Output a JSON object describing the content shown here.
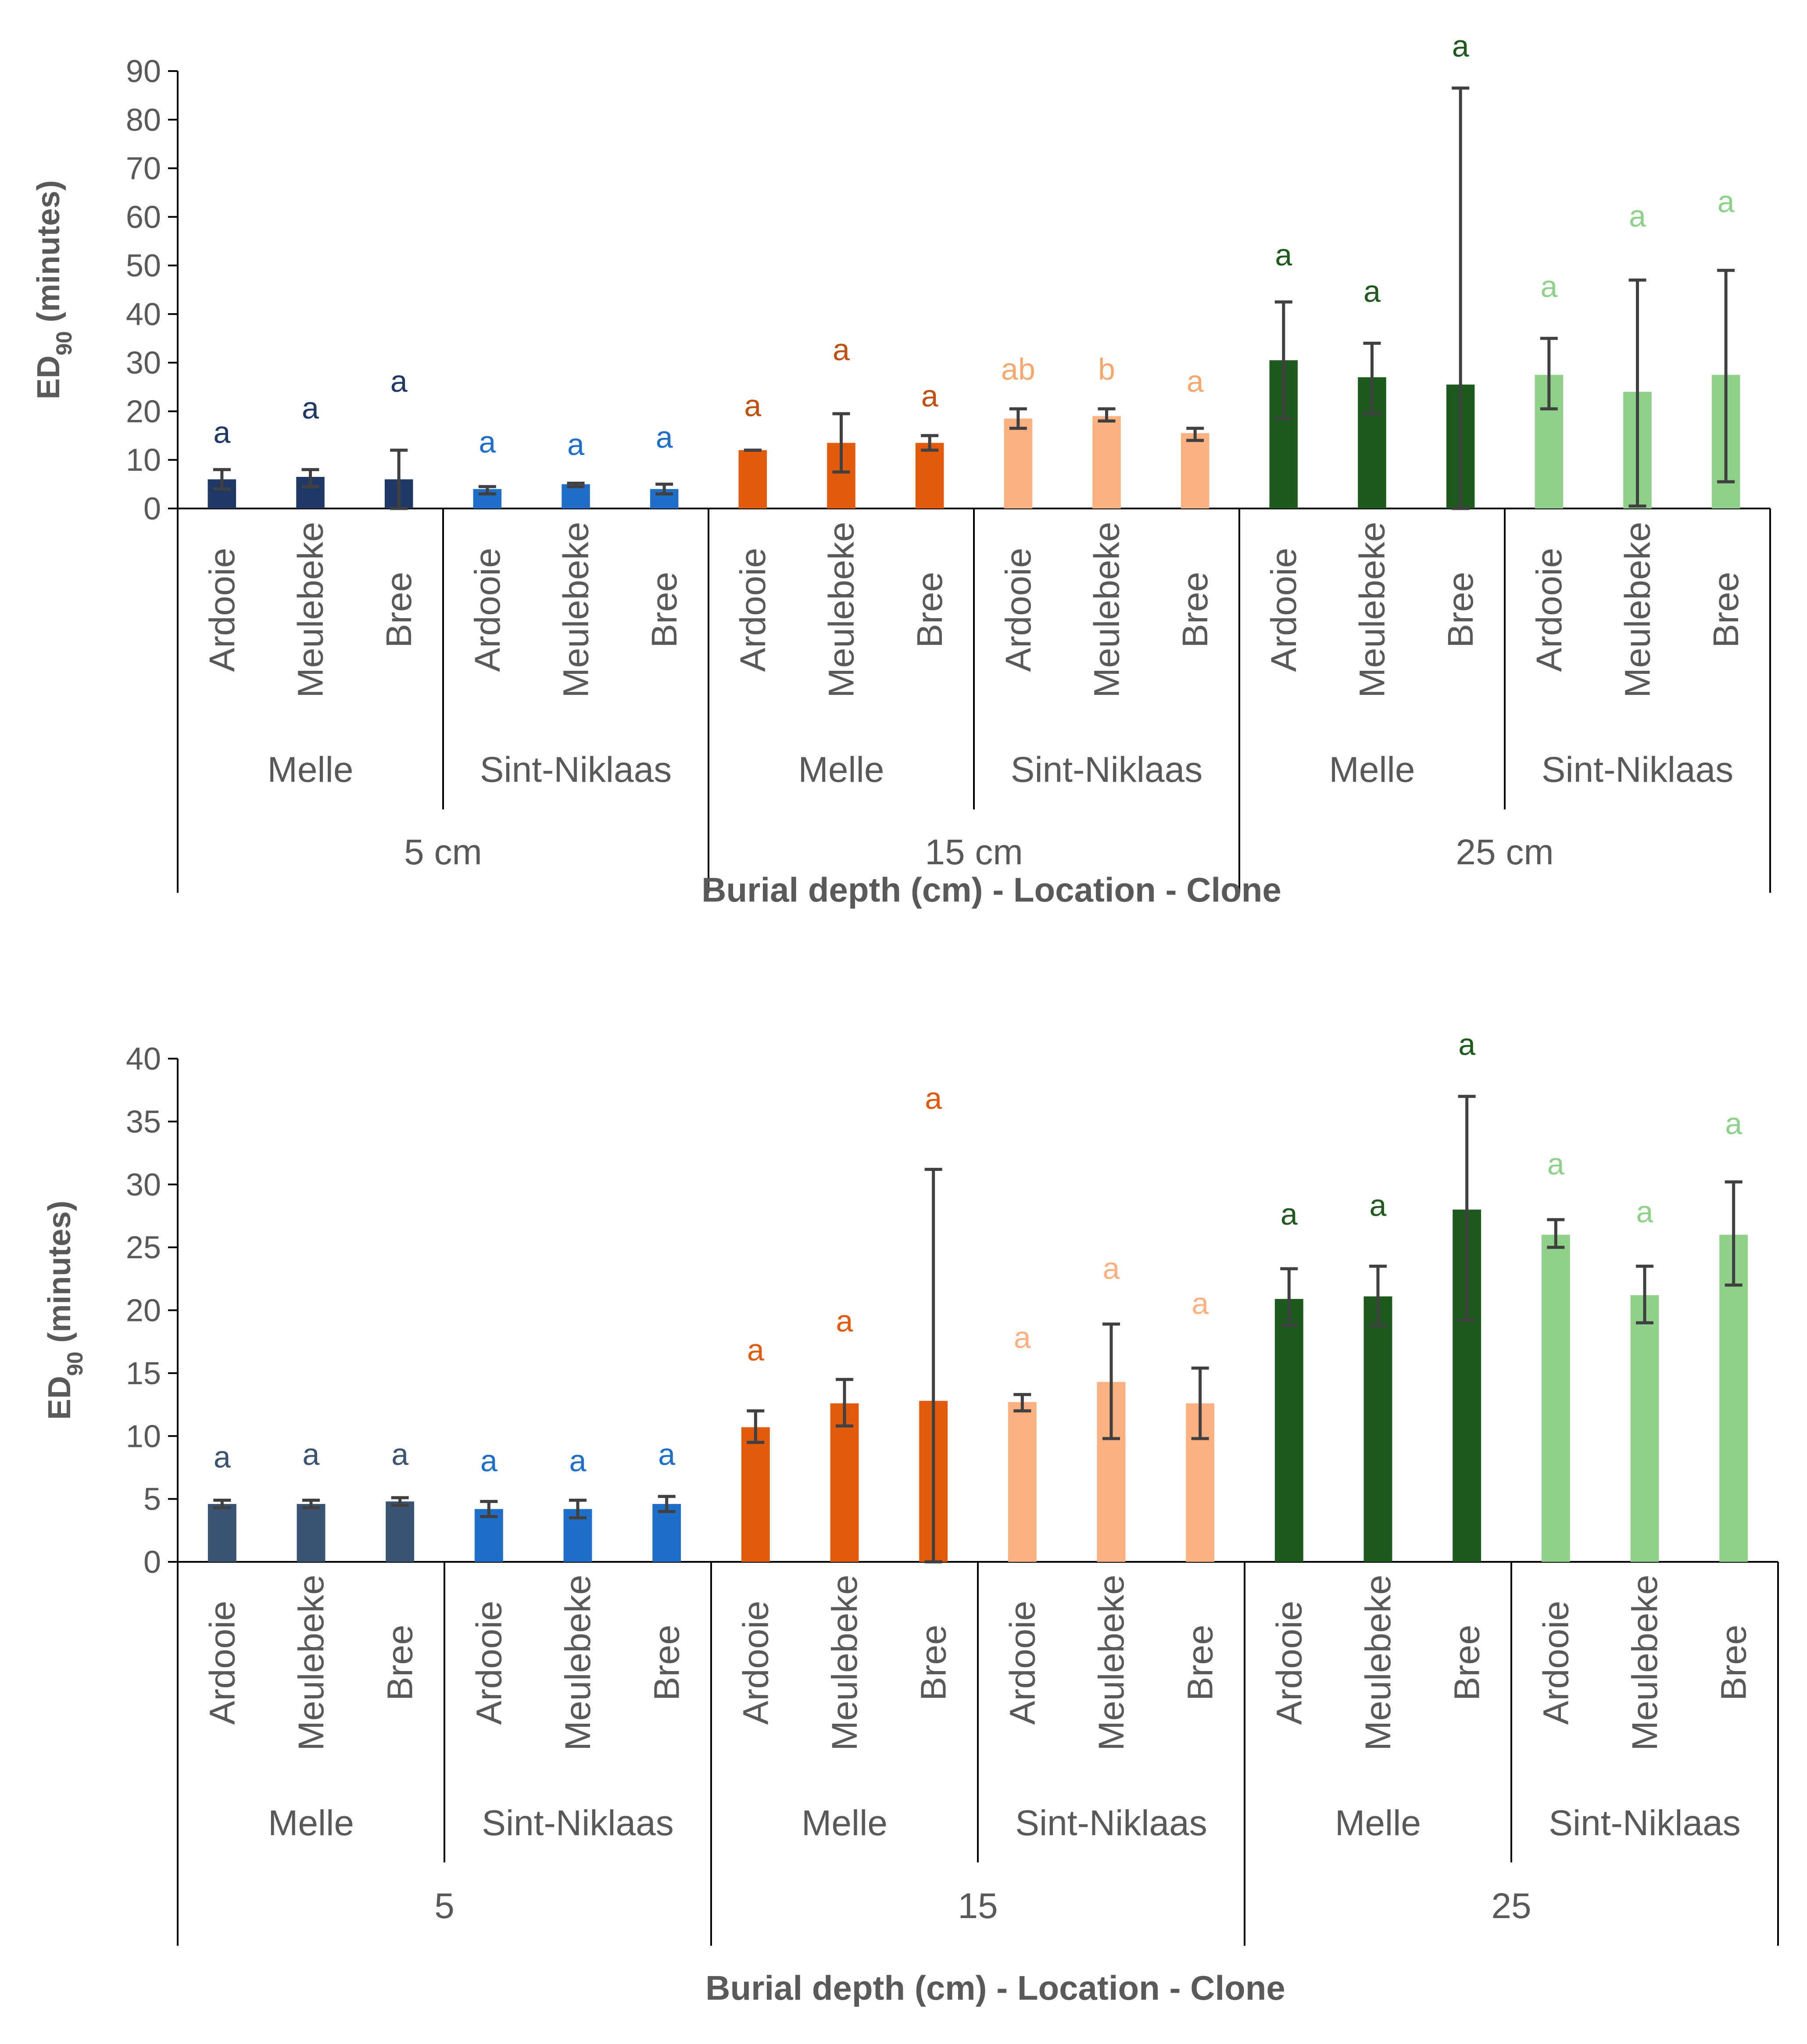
{
  "chart_data": [
    {
      "type": "bar",
      "xlabel": "Burial depth (cm) - Location - Clone",
      "ylabel": "ED90 (minutes)",
      "ylim": [
        0,
        90
      ],
      "yticks": [
        0,
        10,
        20,
        30,
        40,
        50,
        60,
        70,
        80,
        90
      ],
      "depth_labels": [
        "5 cm",
        "15 cm",
        "25 cm"
      ],
      "location_labels": [
        "Melle",
        "Sint-Niklaas",
        "Melle",
        "Sint-Niklaas",
        "Melle",
        "Sint-Niklaas"
      ],
      "categories": [
        "Ardooie",
        "Meulebeke",
        "Bree",
        "Ardooie",
        "Meulebeke",
        "Bree",
        "Ardooie",
        "Meulebeke",
        "Bree",
        "Ardooie",
        "Meulebeke",
        "Bree",
        "Ardooie",
        "Meulebeke",
        "Bree",
        "Ardooie",
        "Meulebeke",
        "Bree"
      ],
      "values": [
        6,
        6.5,
        6,
        4,
        5,
        4,
        12,
        13.5,
        13.5,
        18.5,
        19,
        15.5,
        30.5,
        27,
        25.5,
        27.5,
        24,
        27.5
      ],
      "err_low": [
        4,
        4.5,
        0,
        3,
        4.5,
        3,
        12,
        7.5,
        12,
        16.5,
        18,
        14,
        18.5,
        19.5,
        0,
        20.5,
        0.5,
        5.5
      ],
      "err_high": [
        8,
        8,
        12,
        4.5,
        5.2,
        5,
        12,
        19.5,
        15,
        20.5,
        20.5,
        16.5,
        42.5,
        34,
        86.5,
        35,
        47,
        49
      ],
      "letters": [
        "a",
        "a",
        "a",
        "a",
        "a",
        "a",
        "a",
        "a",
        "a",
        "ab",
        "b",
        "a",
        "a",
        "a",
        "a",
        "a",
        "a",
        "a"
      ],
      "colors": [
        "#1f3864",
        "#1f3864",
        "#1f3864",
        "#1f6fc8",
        "#1f6fc8",
        "#1f6fc8",
        "#e35a0d",
        "#e35a0d",
        "#e35a0d",
        "#fbb182",
        "#fbb182",
        "#fbb182",
        "#1e5a1e",
        "#1e5a1e",
        "#1e5a1e",
        "#8fd08a",
        "#8fd08a",
        "#8fd08a"
      ],
      "letter_colors": [
        "#1f3864",
        "#1f3864",
        "#1f3864",
        "#1f6fc8",
        "#1f6fc8",
        "#1f6fc8",
        "#c0500f",
        "#c0500f",
        "#c0500f",
        "#f5a870",
        "#f5a870",
        "#f5a870",
        "#1e5a1e",
        "#1e5a1e",
        "#1e5a1e",
        "#8fd08a",
        "#8fd08a",
        "#8fd08a"
      ],
      "letter_values": [
        13.5,
        18.5,
        24,
        11.5,
        11,
        12.5,
        19,
        30.5,
        21,
        26.5,
        26.5,
        24,
        50,
        42.5,
        93,
        43.5,
        58,
        61
      ]
    },
    {
      "type": "bar",
      "xlabel": "Burial depth (cm) - Location - Clone",
      "ylabel": "ED90 (minutes)",
      "ylim": [
        0,
        40
      ],
      "yticks": [
        0,
        5,
        10,
        15,
        20,
        25,
        30,
        35,
        40
      ],
      "depth_labels": [
        "5",
        "15",
        "25"
      ],
      "location_labels": [
        "Melle",
        "Sint-Niklaas",
        "Melle",
        "Sint-Niklaas",
        "Melle",
        "Sint-Niklaas"
      ],
      "categories": [
        "Ardooie",
        "Meulebeke",
        "Bree",
        "Ardooie",
        "Meulebeke",
        "Bree",
        "Ardooie",
        "Meulebeke",
        "Bree",
        "Ardooie",
        "Meulebeke",
        "Bree",
        "Ardooie",
        "Meulebeke",
        "Bree",
        "Ardooie",
        "Meulebeke",
        "Bree"
      ],
      "values": [
        4.6,
        4.6,
        4.8,
        4.2,
        4.2,
        4.6,
        10.7,
        12.6,
        12.8,
        12.7,
        14.3,
        12.6,
        20.9,
        21.1,
        28,
        26,
        21.2,
        26
      ],
      "err_low": [
        4.3,
        4.3,
        4.5,
        3.6,
        3.5,
        4.0,
        9.5,
        10.8,
        0,
        12.0,
        9.8,
        9.8,
        18.8,
        18.8,
        19.2,
        25.0,
        19.0,
        22.0
      ],
      "err_high": [
        4.9,
        4.9,
        5.1,
        4.8,
        4.9,
        5.2,
        12.0,
        14.5,
        31.2,
        13.3,
        18.9,
        15.4,
        23.3,
        23.5,
        37.0,
        27.2,
        23.5,
        30.2
      ],
      "letters": [
        "a",
        "a",
        "a",
        "a",
        "a",
        "a",
        "a",
        "a",
        "a",
        "a",
        "a",
        "a",
        "a",
        "a",
        "a",
        "a",
        "a",
        "a"
      ],
      "colors": [
        "#3a5372",
        "#3a5372",
        "#3a5372",
        "#1f6fc8",
        "#1f6fc8",
        "#1f6fc8",
        "#e35a0d",
        "#e35a0d",
        "#e35a0d",
        "#fbb182",
        "#fbb182",
        "#fbb182",
        "#1e5a1e",
        "#1e5a1e",
        "#1e5a1e",
        "#8fd08a",
        "#8fd08a",
        "#8fd08a"
      ],
      "letter_colors": [
        "#3a5372",
        "#3a5372",
        "#3a5372",
        "#1f6fc8",
        "#1f6fc8",
        "#1f6fc8",
        "#e35a0d",
        "#e35a0d",
        "#e35a0d",
        "#fbb182",
        "#fbb182",
        "#fbb182",
        "#1e5a1e",
        "#1e5a1e",
        "#1e5a1e",
        "#8fd08a",
        "#8fd08a",
        "#8fd08a"
      ],
      "letter_values": [
        7.5,
        7.7,
        7.7,
        7.2,
        7.2,
        7.7,
        16.0,
        18.3,
        36.0,
        17.0,
        22.5,
        19.7,
        26.8,
        27.5,
        40.3,
        30.8,
        27.0,
        34.0
      ]
    }
  ]
}
